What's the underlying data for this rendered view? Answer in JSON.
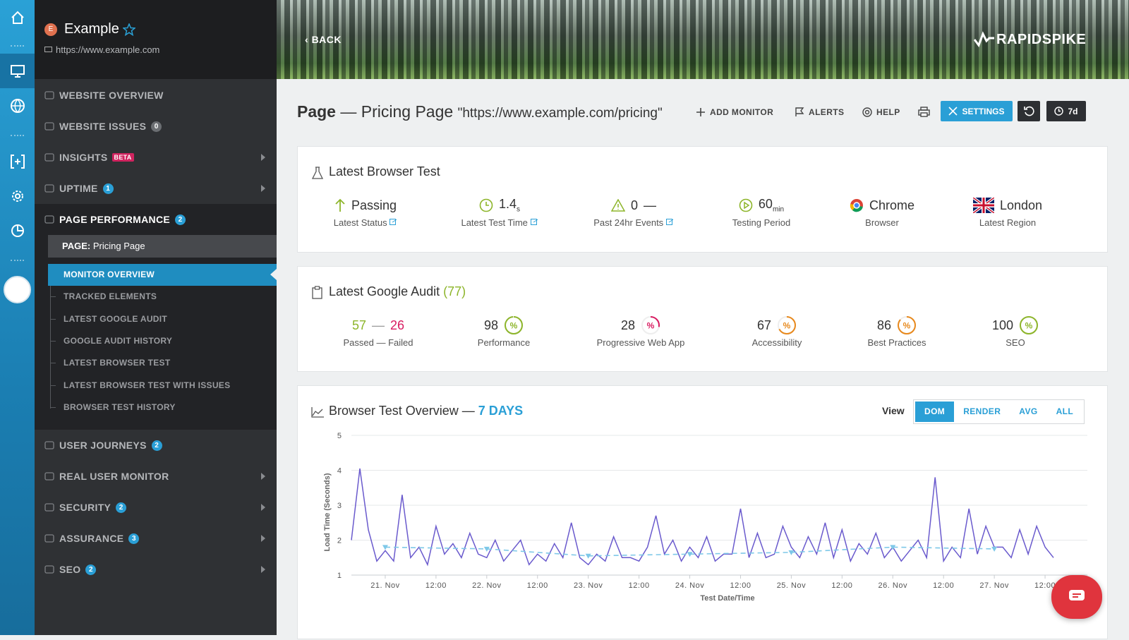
{
  "site": {
    "initial": "E",
    "name": "Example",
    "url": "https://www.example.com"
  },
  "sidebar": {
    "menu_top": [
      {
        "label": "WEBSITE OVERVIEW"
      },
      {
        "label": "WEBSITE ISSUES",
        "badge": 0,
        "badge_color": "#6b6e72"
      },
      {
        "label": "INSIGHTS",
        "tag": "BETA",
        "expandable": true
      },
      {
        "label": "UPTIME",
        "badge": 1,
        "badge_color": "#2a9fd6",
        "expandable": true
      }
    ],
    "active": {
      "label": "PAGE PERFORMANCE",
      "badge": 2,
      "badge_color": "#2a9fd6",
      "page_prefix": "PAGE:",
      "page_name": "Pricing Page",
      "subitems": [
        "MONITOR OVERVIEW",
        "TRACKED ELEMENTS",
        "LATEST GOOGLE AUDIT",
        "GOOGLE AUDIT HISTORY",
        "LATEST BROWSER TEST",
        "LATEST BROWSER TEST WITH ISSUES",
        "BROWSER TEST HISTORY"
      ]
    },
    "menu_bottom": [
      {
        "label": "USER JOURNEYS",
        "badge": 2,
        "badge_color": "#2a9fd6"
      },
      {
        "label": "REAL USER MONITOR",
        "expandable": true
      },
      {
        "label": "SECURITY",
        "badge": 2,
        "badge_color": "#2a9fd6",
        "expandable": true
      },
      {
        "label": "ASSURANCE",
        "badge": 3,
        "badge_color": "#2a9fd6",
        "expandable": true
      },
      {
        "label": "SEO",
        "badge": 2,
        "badge_color": "#2a9fd6",
        "expandable": true
      }
    ]
  },
  "header": {
    "back": "BACK",
    "brand": "RAPIDSPIKE"
  },
  "toolbar": {
    "title_strong": "Page",
    "title": "— Pricing Page",
    "url": "\"https://www.example.com/pricing\"",
    "add_monitor": "ADD MONITOR",
    "alerts": "ALERTS",
    "help": "HELP",
    "settings": "SETTINGS",
    "period": "7d"
  },
  "browser_test": {
    "title": "Latest Browser Test",
    "status": "Passing",
    "status_label": "Latest Status",
    "time": 1.4,
    "time_unit": "s",
    "time_label": "Latest Test Time",
    "events": 0,
    "events_suffix": "—",
    "events_label": "Past 24hr Events",
    "period": 60,
    "period_unit": "min",
    "period_label": "Testing Period",
    "browser": "Chrome",
    "browser_label": "Browser",
    "region": "London",
    "region_label": "Latest Region"
  },
  "audit": {
    "title": "Latest Google Audit",
    "score": "(77)",
    "passed": 57,
    "separator": "—",
    "failed": 26,
    "pf_label": "Passed — Failed",
    "percent_icon": "%",
    "scores": [
      {
        "value": 98,
        "label": "Performance",
        "color": "#8db52a"
      },
      {
        "value": 28,
        "label": "Progressive Web App",
        "color": "#d81b60"
      },
      {
        "value": 67,
        "label": "Accessibility",
        "color": "#e8891c"
      },
      {
        "value": 86,
        "label": "Best Practices",
        "color": "#e8891c"
      },
      {
        "value": 100,
        "label": "SEO",
        "color": "#8db52a"
      }
    ]
  },
  "view": {
    "label": "View",
    "options": [
      "DOM",
      "RENDER",
      "AVG",
      "ALL"
    ],
    "selected": 0
  },
  "chart_data": {
    "type": "line",
    "title": "Browser Test Overview —",
    "subtitle": "7 DAYS",
    "y_label": "Load Time (Seconds)",
    "x_label": "Test Date/Time",
    "xlim": [
      -8,
      166
    ],
    "xticks": [
      {
        "value": 0,
        "label": "21. Nov"
      },
      {
        "value": 12,
        "label": "12:00"
      },
      {
        "value": 24,
        "label": "22. Nov"
      },
      {
        "value": 36,
        "label": "12:00"
      },
      {
        "value": 48,
        "label": "23. Nov"
      },
      {
        "value": 60,
        "label": "12:00"
      },
      {
        "value": 72,
        "label": "24. Nov"
      },
      {
        "value": 84,
        "label": "12:00"
      },
      {
        "value": 96,
        "label": "25. Nov"
      },
      {
        "value": 108,
        "label": "12:00"
      },
      {
        "value": 120,
        "label": "26. Nov"
      },
      {
        "value": 132,
        "label": "12:00"
      },
      {
        "value": 144,
        "label": "27. Nov"
      },
      {
        "value": 156,
        "label": "12:00"
      }
    ],
    "ylim": [
      1,
      5
    ],
    "yticks": [
      1,
      2,
      3,
      4,
      5
    ],
    "grid": true,
    "series": [
      {
        "color": "#6a5acd",
        "dashed": false,
        "x": [
          -8,
          -6,
          -4,
          -2,
          0,
          2,
          4,
          6,
          8,
          10,
          12,
          14,
          16,
          18,
          20,
          22,
          24,
          26,
          28,
          30,
          32,
          34,
          36,
          38,
          40,
          42,
          44,
          46,
          48,
          50,
          52,
          54,
          56,
          58,
          60,
          62,
          64,
          66,
          68,
          70,
          72,
          74,
          76,
          78,
          80,
          82,
          84,
          86,
          88,
          90,
          92,
          94,
          96,
          98,
          100,
          102,
          104,
          106,
          108,
          110,
          112,
          114,
          116,
          118,
          120,
          122,
          124,
          126,
          128,
          130,
          132,
          134,
          136,
          138,
          140,
          142,
          144,
          146,
          148,
          150,
          152,
          154,
          156,
          158
        ],
        "values": [
          2.0,
          4.05,
          2.3,
          1.4,
          1.7,
          1.4,
          3.3,
          1.5,
          1.8,
          1.3,
          2.4,
          1.6,
          1.9,
          1.5,
          2.2,
          1.6,
          1.5,
          2.0,
          1.4,
          1.7,
          2.0,
          1.3,
          1.6,
          1.4,
          1.9,
          1.5,
          2.5,
          1.5,
          1.3,
          1.6,
          1.4,
          2.1,
          1.5,
          1.5,
          1.4,
          1.8,
          2.7,
          1.6,
          2.0,
          1.4,
          1.8,
          1.5,
          2.1,
          1.4,
          1.6,
          1.6,
          2.9,
          1.5,
          2.2,
          1.5,
          1.6,
          2.4,
          1.8,
          1.5,
          2.1,
          1.6,
          2.5,
          1.5,
          2.3,
          1.4,
          1.9,
          1.6,
          2.2,
          1.5,
          1.8,
          1.4,
          1.7,
          2.0,
          1.5,
          3.8,
          1.4,
          1.8,
          1.5,
          2.9,
          1.6,
          2.4,
          1.8,
          1.8,
          1.5,
          2.3,
          1.6,
          2.4,
          1.8,
          1.5
        ]
      },
      {
        "color": "#7ec8e8",
        "dashed": true,
        "x": [
          0,
          24,
          48,
          72,
          96,
          120,
          144
        ],
        "values": [
          1.8,
          1.75,
          1.55,
          1.6,
          1.65,
          1.8,
          1.75
        ]
      }
    ]
  }
}
